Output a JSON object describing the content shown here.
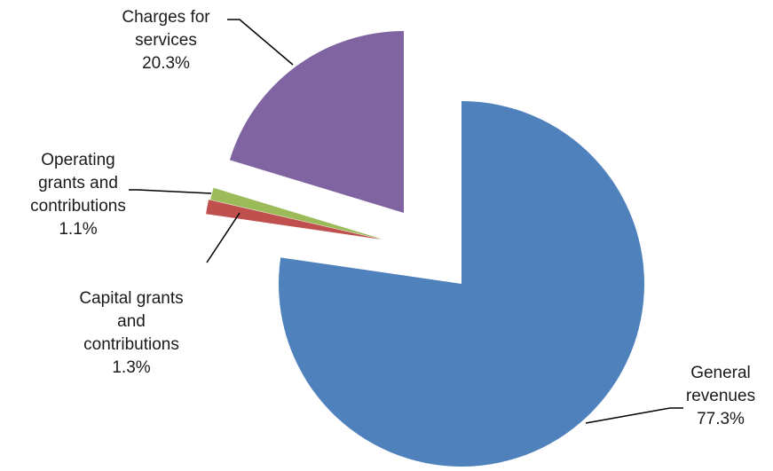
{
  "chart_data": {
    "type": "pie",
    "exploded": true,
    "labels_outside": true,
    "slices": [
      {
        "name": "General revenues",
        "label_lines": [
          "General",
          "revenues"
        ],
        "value_label": "77.3%",
        "value": 77.3,
        "color": "#4F81BD"
      },
      {
        "name": "Capital grants and contributions",
        "label_lines": [
          "Capital grants",
          "and",
          "contributions"
        ],
        "value_label": "1.3%",
        "value": 1.3,
        "color": "#C0504D"
      },
      {
        "name": "Operating grants and contributions",
        "label_lines": [
          "Operating",
          "grants and",
          "contributions"
        ],
        "value_label": "1.1%",
        "value": 1.1,
        "color": "#9BBB59"
      },
      {
        "name": "Charges for services",
        "label_lines": [
          "Charges for",
          "services"
        ],
        "value_label": "20.3%",
        "value": 20.3,
        "color": "#8064A2"
      }
    ]
  }
}
